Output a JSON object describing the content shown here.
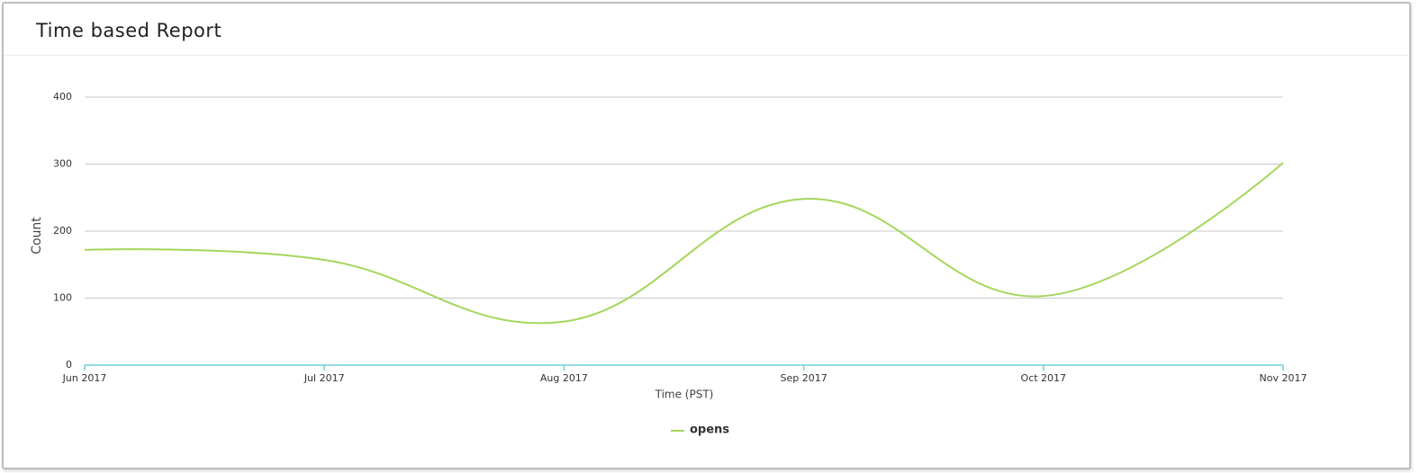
{
  "chart_data": {
    "type": "line",
    "title": "Time based Report",
    "categories": [
      "Jun 2017",
      "Jul 2017",
      "Aug 2017",
      "Sep 2017",
      "Oct 2017",
      "Nov 2017"
    ],
    "series": [
      {
        "name": "opens",
        "color": "#a5d65a",
        "values": [
          172,
          157,
          65,
          248,
          103,
          302
        ]
      }
    ],
    "ylim": [
      0,
      400
    ],
    "yticks": [
      0,
      100,
      200,
      300,
      400
    ],
    "grid": true,
    "y_label": "Count",
    "x_label": "Time (PST)"
  }
}
